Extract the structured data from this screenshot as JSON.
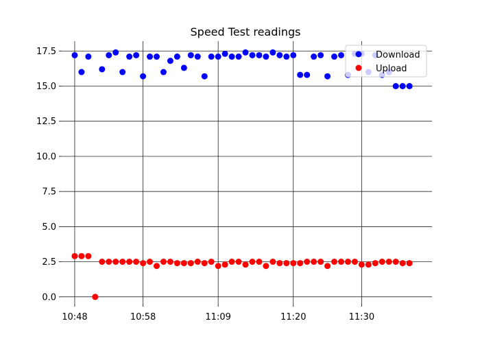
{
  "chart_data": {
    "type": "scatter",
    "title": "Speed Test readings",
    "xlabel": "",
    "ylabel": "",
    "x_unit": "clock time (HH:MM)",
    "xlim": [
      "10:48",
      "11:38"
    ],
    "ylim": [
      -0.5,
      18.2
    ],
    "x_ticks": [
      "10:48",
      "10:58",
      "11:09",
      "11:20",
      "11:30"
    ],
    "y_ticks": [
      "0.0",
      "2.5",
      "5.0",
      "7.5",
      "10.0",
      "12.5",
      "15.0",
      "17.5"
    ],
    "grid": true,
    "legend_position": "top-right",
    "x": [
      "10:48",
      "10:49",
      "10:50",
      "10:52",
      "10:53",
      "10:54",
      "10:55",
      "10:56",
      "10:57",
      "10:58",
      "10:59",
      "11:00",
      "11:01",
      "11:02",
      "11:03",
      "11:04",
      "11:05",
      "11:06",
      "11:07",
      "11:08",
      "11:09",
      "11:10",
      "11:11",
      "11:12",
      "11:13",
      "11:14",
      "11:15",
      "11:16",
      "11:17",
      "11:18",
      "11:19",
      "11:20",
      "11:21",
      "11:22",
      "11:23",
      "11:24",
      "11:25",
      "11:26",
      "11:27",
      "11:28",
      "11:29",
      "11:30",
      "11:31",
      "11:32",
      "11:33",
      "11:34",
      "11:35",
      "11:36",
      "11:37"
    ],
    "series": [
      {
        "name": "Download",
        "color": "#0000ff",
        "values": [
          17.2,
          16.0,
          17.1,
          16.2,
          17.2,
          17.4,
          16.0,
          17.1,
          17.2,
          15.7,
          17.1,
          17.1,
          16.0,
          16.8,
          17.1,
          16.3,
          17.2,
          17.1,
          15.7,
          17.1,
          17.1,
          17.3,
          17.1,
          17.1,
          17.4,
          17.2,
          17.2,
          17.1,
          17.4,
          17.2,
          17.1,
          17.2,
          15.8,
          15.8,
          17.1,
          17.2,
          15.7,
          17.1,
          17.2,
          15.8,
          17.3,
          17.3,
          16.0,
          17.2,
          15.8,
          16.0,
          15.0,
          15.0,
          15.0
        ]
      },
      {
        "name": "Upload",
        "color": "#ff0000",
        "values": [
          2.9,
          2.9,
          2.9,
          2.5,
          2.5,
          2.5,
          2.5,
          2.5,
          2.5,
          2.4,
          2.5,
          2.2,
          2.5,
          2.5,
          2.4,
          2.4,
          2.4,
          2.5,
          2.4,
          2.5,
          2.2,
          2.3,
          2.5,
          2.5,
          2.3,
          2.5,
          2.5,
          2.2,
          2.5,
          2.4,
          2.4,
          2.4,
          2.4,
          2.5,
          2.5,
          2.5,
          2.2,
          2.5,
          2.5,
          2.5,
          2.5,
          2.3,
          2.3,
          2.4,
          2.5,
          2.5,
          2.5,
          2.4,
          2.4
        ]
      }
    ],
    "extra_points": [
      {
        "series": "Upload",
        "x": "10:51",
        "y": 0.0
      }
    ]
  }
}
